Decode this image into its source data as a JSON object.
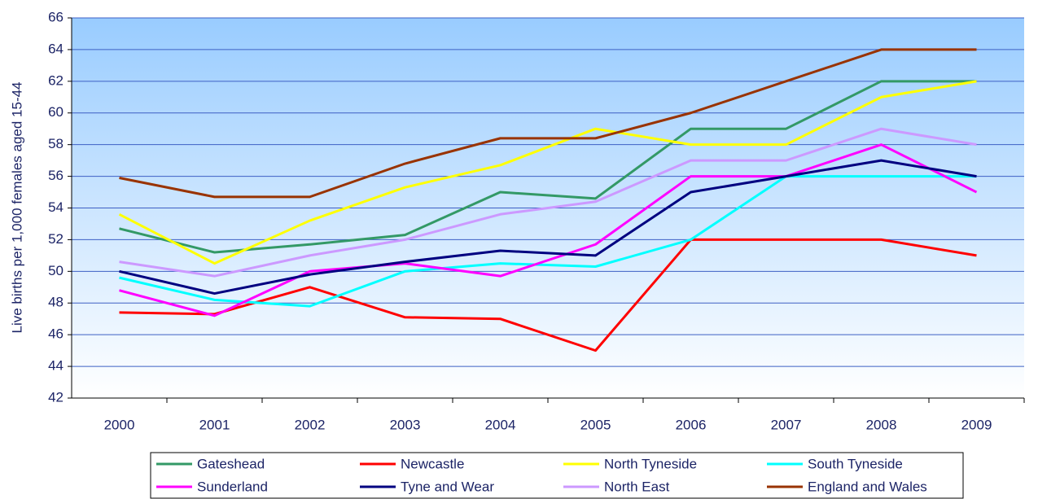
{
  "chart_data": {
    "type": "line",
    "y_label": "Live births per 1,000 females aged 15-44",
    "categories": [
      "2000",
      "2001",
      "2002",
      "2003",
      "2004",
      "2005",
      "2006",
      "2007",
      "2008",
      "2009"
    ],
    "series": [
      {
        "name": "Gateshead",
        "color": "#339966",
        "values": [
          52.7,
          51.2,
          51.7,
          52.3,
          55,
          54.6,
          59,
          59,
          62,
          62
        ]
      },
      {
        "name": "Newcastle",
        "color": "#ff0000",
        "values": [
          47.4,
          47.3,
          49,
          47.1,
          47,
          45,
          52,
          52,
          52,
          51
        ]
      },
      {
        "name": "North Tyneside",
        "color": "#ffff00",
        "values": [
          53.6,
          50.5,
          53.2,
          55.3,
          56.7,
          59,
          58,
          58,
          61,
          62
        ]
      },
      {
        "name": "South Tyneside",
        "color": "#00ffff",
        "values": [
          49.6,
          48.2,
          47.8,
          50,
          50.5,
          50.3,
          52,
          56,
          56,
          56
        ]
      },
      {
        "name": "Sunderland",
        "color": "#ff00ff",
        "values": [
          48.8,
          47.2,
          50,
          50.5,
          49.7,
          51.7,
          56,
          56,
          58,
          55
        ]
      },
      {
        "name": "Tyne and Wear",
        "color": "#000080",
        "values": [
          50,
          48.6,
          49.8,
          50.6,
          51.3,
          51,
          55,
          56,
          57,
          56
        ]
      },
      {
        "name": "North East",
        "color": "#cc99ff",
        "values": [
          50.6,
          49.7,
          51,
          52,
          53.6,
          54.4,
          57,
          57,
          59,
          58
        ]
      },
      {
        "name": "England and Wales",
        "color": "#993300",
        "values": [
          55.9,
          54.7,
          54.7,
          56.8,
          58.4,
          58.4,
          60,
          62,
          64,
          64
        ]
      }
    ],
    "ylim": [
      42,
      66
    ],
    "yticks": [
      42,
      44,
      46,
      48,
      50,
      52,
      54,
      56,
      58,
      60,
      62,
      64,
      66
    ],
    "grid": true
  }
}
